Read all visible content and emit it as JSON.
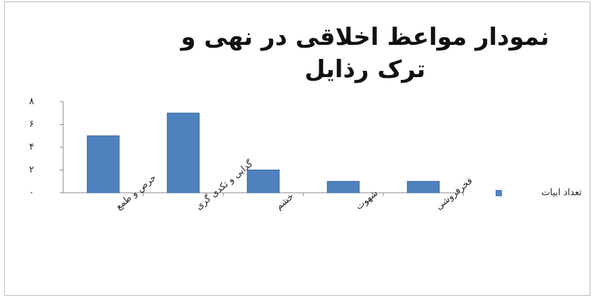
{
  "chart_data": {
    "type": "bar",
    "title": "نمودار مواعظ اخلاقی در نهی و ترک رذایل",
    "categories": [
      "حرص و طمع",
      "گدایی و تکدی گری",
      "خشم",
      "شهوت",
      "فخرفروشی"
    ],
    "series": [
      {
        "name": "تعداد ابیات",
        "color": "#4f81bd",
        "values": [
          5,
          7,
          2,
          1,
          1
        ]
      }
    ],
    "ylim": [
      0,
      8
    ],
    "yticks": [
      {
        "value": 0,
        "label": "۰"
      },
      {
        "value": 2,
        "label": "۲"
      },
      {
        "value": 4,
        "label": "۴"
      },
      {
        "value": 6,
        "label": "۶"
      },
      {
        "value": 8,
        "label": "۸"
      }
    ],
    "legend": "right"
  }
}
